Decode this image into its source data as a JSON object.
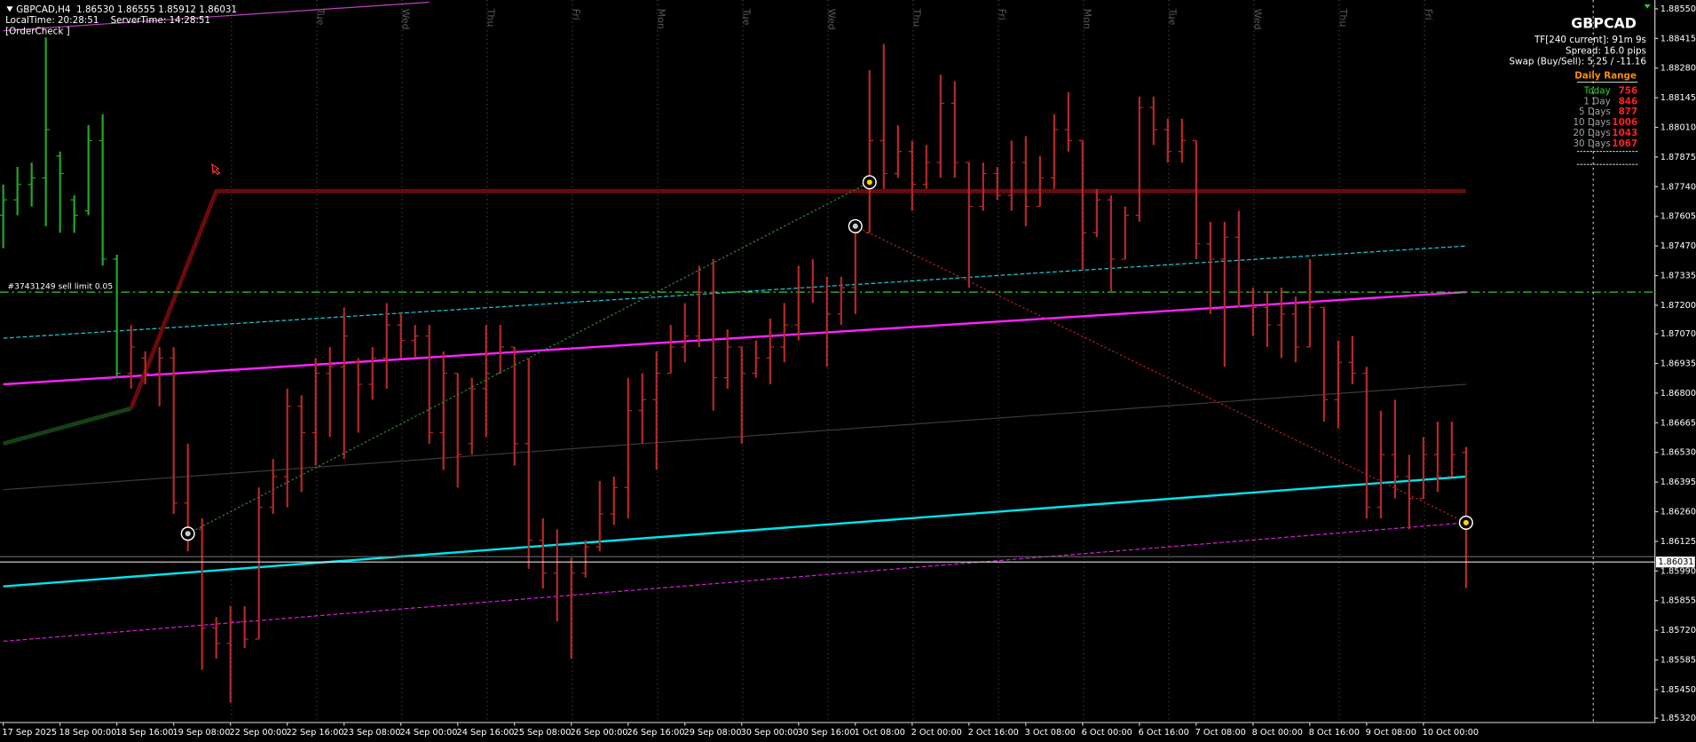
{
  "header": {
    "title": "GBPCAD,H4  1.86530 1.86555 1.85912 1.86031",
    "time": "LocalTime: 20:28:51    ServerTime: 14:28:51",
    "order_check": "[OrderCheck ]"
  },
  "info_panel": {
    "symbol": "GBPCAD",
    "timeframe": "TF[240 current]: 91m 9s",
    "spread": "Spread: 16.0 pips",
    "swap": "Swap (Buy/Sell): 5.25 / -11.16",
    "daily_range": {
      "title": "Daily Range",
      "rows": [
        {
          "label": "Today",
          "value": 756
        },
        {
          "label": "1 Day",
          "value": 846
        },
        {
          "label": "5 Days",
          "value": 877
        },
        {
          "label": "10 Days",
          "value": 1006
        },
        {
          "label": "20 Days",
          "value": 1043
        },
        {
          "label": "30 Days",
          "value": 1067
        }
      ]
    }
  },
  "chart_data": {
    "type": "ohlc",
    "ylim": [
      1.853,
      1.8859
    ],
    "yticks": [
      {
        "value": 1.8855,
        "label": "1.88550"
      },
      {
        "value": 1.88415,
        "label": "1.88415"
      },
      {
        "value": 1.8828,
        "label": "1.88280"
      },
      {
        "value": 1.88145,
        "label": "1.88145"
      },
      {
        "value": 1.8801,
        "label": "1.88010"
      },
      {
        "value": 1.87875,
        "label": "1.87875"
      },
      {
        "value": 1.8774,
        "label": "1.87740"
      },
      {
        "value": 1.87605,
        "label": "1.87605"
      },
      {
        "value": 1.8747,
        "label": "1.87470"
      },
      {
        "value": 1.87335,
        "label": "1.87335"
      },
      {
        "value": 1.872,
        "label": "1.87200"
      },
      {
        "value": 1.8707,
        "label": "1.87070"
      },
      {
        "value": 1.86935,
        "label": "1.86935"
      },
      {
        "value": 1.868,
        "label": "1.86800"
      },
      {
        "value": 1.86665,
        "label": "1.86665"
      },
      {
        "value": 1.8653,
        "label": "1.86530"
      },
      {
        "value": 1.86395,
        "label": "1.86395"
      },
      {
        "value": 1.8626,
        "label": "1.86260"
      },
      {
        "value": 1.86125,
        "label": "1.86125"
      },
      {
        "value": 1.8599,
        "label": "1.85990"
      },
      {
        "value": 1.85855,
        "label": "1.85855"
      },
      {
        "value": 1.8572,
        "label": "1.85720"
      },
      {
        "value": 1.85585,
        "label": "1.85585"
      },
      {
        "value": 1.8545,
        "label": "1.85450"
      },
      {
        "value": 1.8532,
        "label": "1.85320"
      }
    ],
    "grid": false,
    "categories": [
      "17 Sep 2025",
      null,
      null,
      null,
      "18 Sep 00:00",
      null,
      null,
      null,
      "18 Sep 16:00",
      null,
      null,
      null,
      "19 Sep 08:00",
      null,
      null,
      null,
      "22 Sep 00:00",
      null,
      null,
      null,
      "22 Sep 16:00",
      null,
      null,
      null,
      "23 Sep 08:00",
      null,
      null,
      null,
      "24 Sep 00:00",
      null,
      null,
      null,
      "24 Sep 16:00",
      null,
      null,
      null,
      "25 Sep 08:00",
      null,
      null,
      null,
      "26 Sep 00:00",
      null,
      null,
      null,
      "26 Sep 16:00",
      null,
      null,
      null,
      "29 Sep 08:00",
      null,
      null,
      null,
      "30 Sep 00:00",
      null,
      null,
      null,
      "30 Sep 16:00",
      null,
      null,
      null,
      "1 Oct 08:00",
      null,
      null,
      null,
      "2 Oct 00:00",
      null,
      null,
      null,
      "2 Oct 16:00",
      null,
      null,
      null,
      "3 Oct 08:00",
      null,
      null,
      null,
      "6 Oct 00:00",
      null,
      null,
      null,
      "6 Oct 16:00",
      null,
      null,
      null,
      "7 Oct 08:00",
      null,
      null,
      null,
      "8 Oct 00:00",
      null,
      null,
      null,
      "8 Oct 16:00",
      null,
      null,
      null,
      "9 Oct 08:00",
      null,
      null,
      null,
      "10 Oct 00:00",
      null,
      null,
      null
    ],
    "day_labels": [
      null,
      "Tue",
      "Wed",
      "Thu",
      "Fri",
      "Mon",
      "Tue",
      "Wed",
      "Thu",
      "Fri",
      "Mon",
      "Tue",
      "Wed",
      "Thu",
      "Fri"
    ],
    "series": [
      {
        "color": "#22a822",
        "values": [
          [
            1.8761,
            1.8775,
            1.8746,
            1.8768
          ],
          [
            1.8768,
            1.8783,
            1.8761,
            1.8775
          ],
          [
            1.8775,
            1.8785,
            1.8765,
            1.8778
          ],
          [
            1.8778,
            1.8842,
            1.8756,
            1.88
          ],
          [
            1.8788,
            1.879,
            1.8753,
            1.878
          ],
          [
            1.8768,
            1.877,
            1.8753,
            1.8761
          ],
          [
            1.8763,
            1.8802,
            1.8761,
            1.8795
          ],
          [
            1.8795,
            1.8807,
            1.8738,
            1.8741
          ],
          [
            1.8741,
            1.8743,
            1.8687,
            1.8689
          ],
          null,
          null,
          null,
          null,
          null,
          null,
          null,
          null,
          null,
          null,
          null,
          null,
          null,
          null,
          null,
          null,
          null,
          null,
          null,
          null,
          null,
          null,
          null,
          null,
          null,
          null,
          null,
          null,
          null,
          null,
          null,
          null,
          null,
          null,
          null,
          null,
          null,
          null,
          null,
          null,
          null,
          null,
          null,
          null,
          null,
          null,
          null,
          null,
          null,
          null,
          null,
          null,
          null,
          null,
          null,
          null,
          null,
          null,
          null,
          null,
          null,
          null,
          null,
          null,
          null,
          null,
          null,
          null,
          null,
          null,
          null,
          null,
          null,
          null,
          null,
          null,
          null,
          null,
          null,
          null,
          null,
          null,
          null,
          null,
          null,
          null,
          null,
          null,
          null,
          null,
          null,
          null,
          null,
          null,
          null
        ]
      },
      {
        "color": "#b82828",
        "values": [
          null,
          null,
          null,
          null,
          null,
          null,
          null,
          null,
          null,
          [
            1.8689,
            1.8711,
            1.8682,
            1.8701
          ],
          [
            1.8696,
            1.8699,
            1.8684,
            1.8689
          ],
          [
            1.8689,
            1.8701,
            1.8674,
            1.8696
          ],
          [
            1.8696,
            1.8701,
            1.8625,
            1.863
          ],
          [
            1.863,
            1.8657,
            1.8608,
            1.8618
          ],
          [
            1.8618,
            1.8623,
            1.8554,
            1.8573
          ],
          [
            1.8573,
            1.8578,
            1.8559,
            1.8566
          ],
          [
            1.8566,
            1.8583,
            1.8539,
            1.8576
          ],
          [
            1.8576,
            1.8583,
            1.8564,
            1.8568
          ],
          [
            1.8568,
            1.8637,
            1.8568,
            1.8628
          ],
          [
            1.8628,
            1.865,
            1.8625,
            1.8642
          ],
          [
            1.8642,
            1.8682,
            1.8628,
            1.8674
          ],
          [
            1.8674,
            1.8679,
            1.8635,
            1.8662
          ],
          [
            1.8662,
            1.8696,
            1.8647,
            1.8689
          ],
          [
            1.8689,
            1.8701,
            1.866,
            1.8692
          ],
          [
            1.8692,
            1.8719,
            1.865,
            1.8706
          ],
          [
            1.8694,
            1.8696,
            1.8662,
            1.8684
          ],
          [
            1.8684,
            1.8701,
            1.8677,
            1.8696
          ],
          [
            1.8696,
            1.8721,
            1.8682,
            1.8711
          ],
          [
            1.8711,
            1.8716,
            1.8696,
            1.8704
          ],
          [
            1.8704,
            1.8711,
            1.8696,
            1.8706
          ],
          [
            1.8706,
            1.8711,
            1.8657,
            1.8662
          ],
          [
            1.8662,
            1.8699,
            1.8645,
            1.8689
          ],
          [
            1.8689,
            1.8689,
            1.8637,
            1.8652
          ],
          [
            1.8657,
            1.8687,
            1.8652,
            1.8682
          ],
          [
            1.8682,
            1.8711,
            1.866,
            1.8689
          ],
          [
            1.8689,
            1.8711,
            1.8689,
            1.8701
          ],
          [
            1.8701,
            1.8701,
            1.8647,
            1.8657
          ],
          [
            1.8657,
            1.8696,
            1.86,
            1.8613
          ],
          [
            1.8613,
            1.8623,
            1.8591,
            1.8598
          ],
          [
            1.8598,
            1.8618,
            1.8576,
            1.8603
          ],
          [
            1.8603,
            1.8605,
            1.8559,
            1.8598
          ],
          [
            1.8598,
            1.8613,
            1.8596,
            1.861
          ],
          [
            1.861,
            1.864,
            1.8608,
            1.8625
          ],
          [
            1.8625,
            1.8642,
            1.862,
            1.8637
          ],
          [
            1.8637,
            1.8687,
            1.8623,
            1.8672
          ],
          [
            1.8672,
            1.8689,
            1.8657,
            1.8677
          ],
          [
            1.8677,
            1.8699,
            1.8645,
            1.8689
          ],
          [
            1.8689,
            1.8711,
            1.8689,
            1.8701
          ],
          [
            1.8701,
            1.8721,
            1.8694,
            1.8706
          ],
          [
            1.8706,
            1.8738,
            1.8701,
            1.8726
          ],
          [
            1.8726,
            1.8741,
            1.8672,
            1.8687
          ],
          [
            1.8687,
            1.8709,
            1.8682,
            1.8701
          ],
          [
            1.8701,
            1.8701,
            1.8657,
            1.8689
          ],
          [
            1.8689,
            1.8704,
            1.8687,
            1.8696
          ],
          [
            1.8696,
            1.8714,
            1.8684,
            1.8701
          ],
          [
            1.8701,
            1.8721,
            1.8694,
            1.8711
          ],
          [
            1.8711,
            1.8738,
            1.8704,
            1.8728
          ],
          [
            1.8728,
            1.8741,
            1.8721,
            1.8726
          ],
          [
            1.8726,
            1.8733,
            1.8692,
            1.8716
          ],
          [
            1.8716,
            1.8733,
            1.8711,
            1.8728
          ],
          [
            1.8728,
            1.8758,
            1.8716,
            1.8753
          ],
          [
            1.8753,
            1.8827,
            1.8753,
            1.8795
          ],
          [
            1.8795,
            1.8839,
            1.8773,
            1.878
          ],
          [
            1.878,
            1.8802,
            1.8778,
            1.879
          ],
          [
            1.879,
            1.8795,
            1.8763,
            1.8775
          ],
          [
            1.8775,
            1.8793,
            1.8773,
            1.8785
          ],
          [
            1.8785,
            1.8825,
            1.8778,
            1.8812
          ],
          [
            1.8812,
            1.8822,
            1.8778,
            1.8785
          ],
          [
            1.8785,
            1.8785,
            1.8728,
            1.8765
          ],
          [
            1.8765,
            1.8785,
            1.8763,
            1.878
          ],
          [
            1.878,
            1.8783,
            1.8768,
            1.877
          ],
          [
            1.877,
            1.8795,
            1.8763,
            1.8785
          ],
          [
            1.8785,
            1.8797,
            1.8756,
            1.8765
          ],
          [
            1.8765,
            1.8788,
            1.8765,
            1.8778
          ],
          [
            1.8778,
            1.8807,
            1.8773,
            1.88
          ],
          [
            1.88,
            1.8817,
            1.879,
            1.8795
          ],
          [
            1.8795,
            1.8795,
            1.8736,
            1.8753
          ],
          [
            1.8753,
            1.8773,
            1.8751,
            1.8768
          ],
          [
            1.8768,
            1.877,
            1.8726,
            1.8741
          ],
          [
            1.8741,
            1.8765,
            1.8741,
            1.8761
          ],
          [
            1.8761,
            1.8815,
            1.8758,
            1.881
          ],
          [
            1.881,
            1.8815,
            1.8793,
            1.88
          ],
          [
            1.88,
            1.8805,
            1.8785,
            1.879
          ],
          [
            1.879,
            1.8805,
            1.8785,
            1.8795
          ],
          [
            1.8795,
            1.8795,
            1.8741,
            1.8748
          ],
          [
            1.8748,
            1.8758,
            1.8716,
            1.8741
          ],
          [
            1.8741,
            1.8758,
            1.8692,
            1.8751
          ],
          [
            1.8751,
            1.8763,
            1.8719,
            1.8726
          ],
          [
            1.8726,
            1.8728,
            1.8706,
            1.8719
          ],
          [
            1.8719,
            1.8726,
            1.8701,
            1.8711
          ],
          [
            1.8711,
            1.8728,
            1.8696,
            1.8716
          ],
          [
            1.8716,
            1.8724,
            1.8694,
            1.8701
          ],
          [
            1.8701,
            1.8741,
            1.8701,
            1.8719
          ],
          [
            1.8719,
            1.8719,
            1.8667,
            1.8677
          ],
          [
            1.8677,
            1.8704,
            1.8664,
            1.8694
          ],
          [
            1.8694,
            1.8706,
            1.8684,
            1.8689
          ],
          [
            1.8689,
            1.8692,
            1.8623,
            1.8628
          ],
          [
            1.8628,
            1.8672,
            1.8623,
            1.8652
          ],
          [
            1.8652,
            1.8677,
            1.8632,
            1.8642
          ],
          [
            1.8642,
            1.8652,
            1.8618,
            1.8632
          ],
          [
            1.8632,
            1.866,
            1.8632,
            1.8652
          ],
          [
            1.8652,
            1.8667,
            1.8635,
            1.8642
          ],
          [
            1.8642,
            1.8667,
            1.8642,
            1.8652
          ],
          [
            1.8653,
            1.86555,
            1.85912,
            1.86031
          ]
        ]
      }
    ],
    "overlays": [
      {
        "color": "#3a3a3a",
        "width": 1,
        "x": [
          0,
          103
        ],
        "values": [
          1.8636,
          1.8684
        ]
      },
      {
        "color": "#1fc7d6",
        "width": 1,
        "dash": "4 2",
        "x": [
          0,
          103
        ],
        "values": [
          1.8705,
          1.8747
        ]
      },
      {
        "color": "#d020d0",
        "width": 1,
        "dash": "4 2",
        "x": [
          0,
          103
        ],
        "values": [
          1.8567,
          1.8621
        ]
      },
      {
        "color": "#ff22ff",
        "width": 2,
        "x": [
          0,
          103
        ],
        "values": [
          1.8684,
          1.8726
        ]
      },
      {
        "color": "#00e5ee",
        "width": 2,
        "x": [
          0,
          103
        ],
        "values": [
          1.8592,
          1.8642
        ]
      },
      {
        "color": "#173f17",
        "width": 4,
        "x": [
          0,
          9
        ],
        "values": [
          1.8657,
          1.8673
        ]
      },
      {
        "color": "#6b0a0a",
        "width": 4,
        "x": [
          9,
          15,
          103
        ],
        "values": [
          1.8673,
          1.8772,
          1.8772
        ]
      },
      {
        "color": "#c040c0",
        "width": 1,
        "x": [
          0,
          30
        ],
        "values": [
          1.8845,
          1.8858
        ]
      }
    ],
    "trades": [
      {
        "color": "#2e8b2e",
        "x": [
          13,
          61
        ],
        "values": [
          1.8616,
          1.8776
        ]
      },
      {
        "color": "#b22222",
        "x": [
          60,
          103
        ],
        "values": [
          1.8756,
          1.8621
        ]
      }
    ],
    "order": {
      "label": "#37431249 sell limit 0.05",
      "price": 1.8726,
      "color": "#32cd32"
    }
  }
}
